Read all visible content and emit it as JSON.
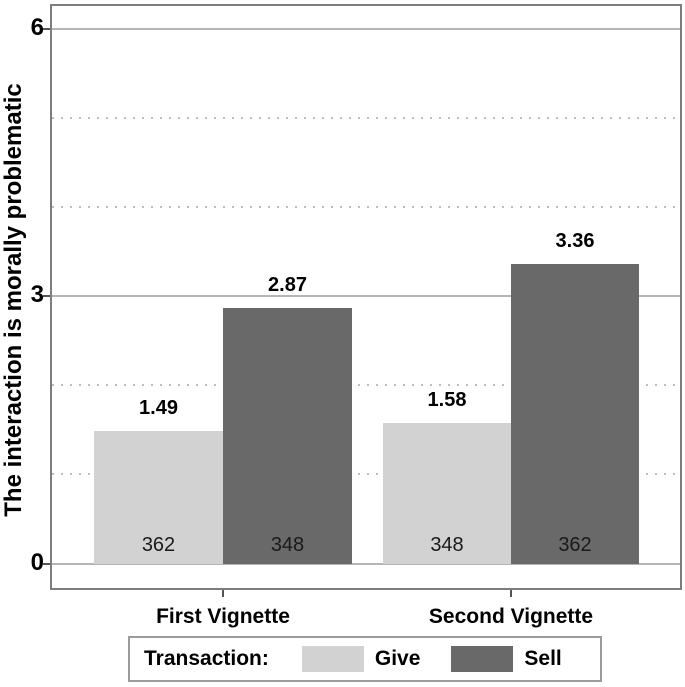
{
  "chart_data": {
    "type": "bar",
    "title": "",
    "xlabel": "",
    "ylabel": "The interaction is morally problematic",
    "categories": [
      "First Vignette",
      "Second Vignette"
    ],
    "series": [
      {
        "name": "Give",
        "color": "#d2d2d2",
        "values": [
          1.49,
          1.58
        ],
        "counts": [
          362,
          348
        ]
      },
      {
        "name": "Sell",
        "color": "#696969",
        "values": [
          2.87,
          3.36
        ],
        "counts": [
          348,
          362
        ]
      }
    ],
    "ylim": [
      0,
      6.3
    ],
    "yticks": [
      0,
      3,
      6
    ],
    "grid": {
      "solid_at": [
        0,
        3,
        6
      ],
      "dotted_at": [
        1,
        2,
        4,
        5
      ],
      "color": "#bdbdbd"
    },
    "legend": {
      "title": "Transaction:",
      "position": "bottom",
      "entries": [
        "Give",
        "Sell"
      ]
    },
    "value_labels_shown": true,
    "count_labels_shown": true
  },
  "colors": {
    "give_fill": "#d2d2d2",
    "sell_fill": "#696969",
    "panel_border": "#7d7d7d",
    "gridline": "#b5b5b5",
    "legend_border": "#9c9c9c"
  }
}
